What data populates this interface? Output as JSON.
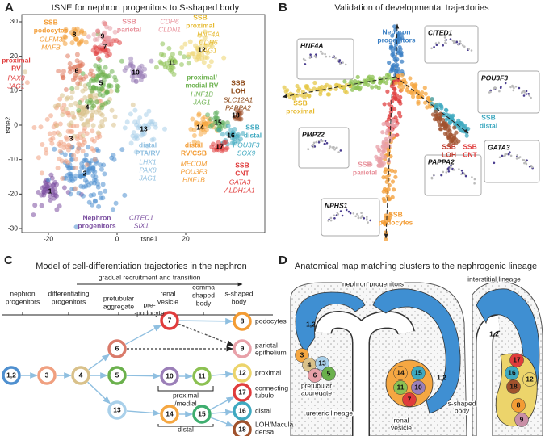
{
  "panel_a": {
    "letter": "A",
    "title": "tSNE for nephron progenitors to S-shaped body",
    "x_label": "tsne1",
    "y_label": "tsne2",
    "x_ticks": [
      -20,
      0,
      20
    ],
    "y_ticks": [
      30,
      20,
      10,
      0,
      -10,
      -20,
      -30
    ],
    "clusters": [
      1,
      2,
      3,
      4,
      5,
      6,
      7,
      8,
      9,
      10,
      11,
      12,
      13,
      14,
      15,
      16,
      17,
      18
    ],
    "annotations": [
      {
        "name": [
          "SSB",
          "podocytes"
        ],
        "genes": [
          "OLFM3",
          "MAFB"
        ]
      },
      {
        "name": [
          "SSB",
          "parietal"
        ],
        "genes": [
          "CDH6",
          "CLDN1"
        ]
      },
      {
        "name": [
          "SSB",
          "proximal"
        ],
        "genes": [
          "HNF4A",
          "CDH6",
          "JAG1"
        ]
      },
      {
        "name": [
          "proximal",
          "RV"
        ],
        "genes": [
          "PAX8",
          "JAG1"
        ]
      },
      {
        "name": [
          "proximal/",
          "medial RV"
        ],
        "genes": [
          "HNF1B",
          "JAG1"
        ]
      },
      {
        "name": [
          "SSB",
          "LOH"
        ],
        "genes": [
          "SLC12A1",
          "PAPPA2"
        ]
      },
      {
        "name": [
          "SSB",
          "distal"
        ],
        "genes": [
          "POU3F3",
          "SOX9"
        ]
      },
      {
        "name": [
          "SSB",
          "CNT"
        ],
        "genes": [
          "GATA3",
          "ALDH1A1"
        ]
      },
      {
        "name": [
          "distal",
          "RV/CSB"
        ],
        "genes": [
          "MECOM",
          "POU3F3",
          "HNF1B"
        ]
      },
      {
        "name": [
          "distal",
          "PTA/RV"
        ],
        "genes": [
          "LHX1",
          "PAX8",
          "JAG1"
        ]
      },
      {
        "name": [
          "Nephron",
          "progenitors"
        ],
        "genes": [
          "CITED1",
          "SIX1"
        ]
      }
    ]
  },
  "panel_b": {
    "letter": "B",
    "title": "Validation of developmental trajectories",
    "branches": [
      [
        "Nephron",
        "progenitors"
      ],
      [
        "SSB",
        "proximal"
      ],
      [
        "SSB",
        "parietal"
      ],
      [
        "SSB",
        "podocytes"
      ],
      [
        "SSB",
        "LOH"
      ],
      [
        "SSB",
        "CNT"
      ],
      [
        "SSB",
        "distal"
      ]
    ],
    "insets": [
      "HNF4A",
      "CITED1",
      "POU3F3",
      "PMP22",
      "GATA3",
      "PAPPA2",
      "NPHS1"
    ]
  },
  "panel_c": {
    "letter": "C",
    "title": "Model of cell-differentiation trajectories in the nephron",
    "banner": "gradual recruitment and transition",
    "stages": [
      [
        "nephron",
        "progenitors"
      ],
      [
        "differentiating",
        "progenitors"
      ],
      [
        "pretubular",
        "aggregate"
      ],
      [
        "renal",
        "vesicle"
      ],
      [
        "comma",
        "shaped",
        "body"
      ],
      [
        "s-shaped",
        "body"
      ]
    ],
    "nodes": [
      "1,2",
      "3",
      "4",
      "6",
      "5",
      "13",
      "7",
      "10",
      "11",
      "14",
      "15",
      "8",
      "9",
      "12",
      "17",
      "16",
      "18"
    ],
    "notes": [
      [
        "pre-",
        "-podocyte"
      ],
      [
        "proximal",
        "/medial"
      ],
      [
        "distal"
      ]
    ],
    "fates": [
      [
        "podocytes"
      ],
      [
        "parietal",
        "epithelium"
      ],
      [
        "proximal"
      ],
      [
        "connecting",
        "tubule"
      ],
      [
        "distal"
      ],
      [
        "LOH/Macula",
        "densa"
      ]
    ]
  },
  "panel_d": {
    "letter": "D",
    "title": "Anatomical map matching clusters to the nephrogenic lineage",
    "labels": [
      [
        "nephron progenitors"
      ],
      [
        "interstitial lineage"
      ],
      [
        "pretubular",
        "aggregate"
      ],
      [
        "ureteric lineage"
      ],
      [
        "renal",
        "vesicle"
      ],
      [
        "s-shaped",
        "body"
      ]
    ],
    "regions": [
      "1,2",
      "3",
      "4",
      "13",
      "6",
      "5",
      "14",
      "15",
      "11",
      "10",
      "7",
      "1,2",
      "1,2",
      "17",
      "16",
      "18",
      "12",
      "8",
      "9"
    ]
  }
}
